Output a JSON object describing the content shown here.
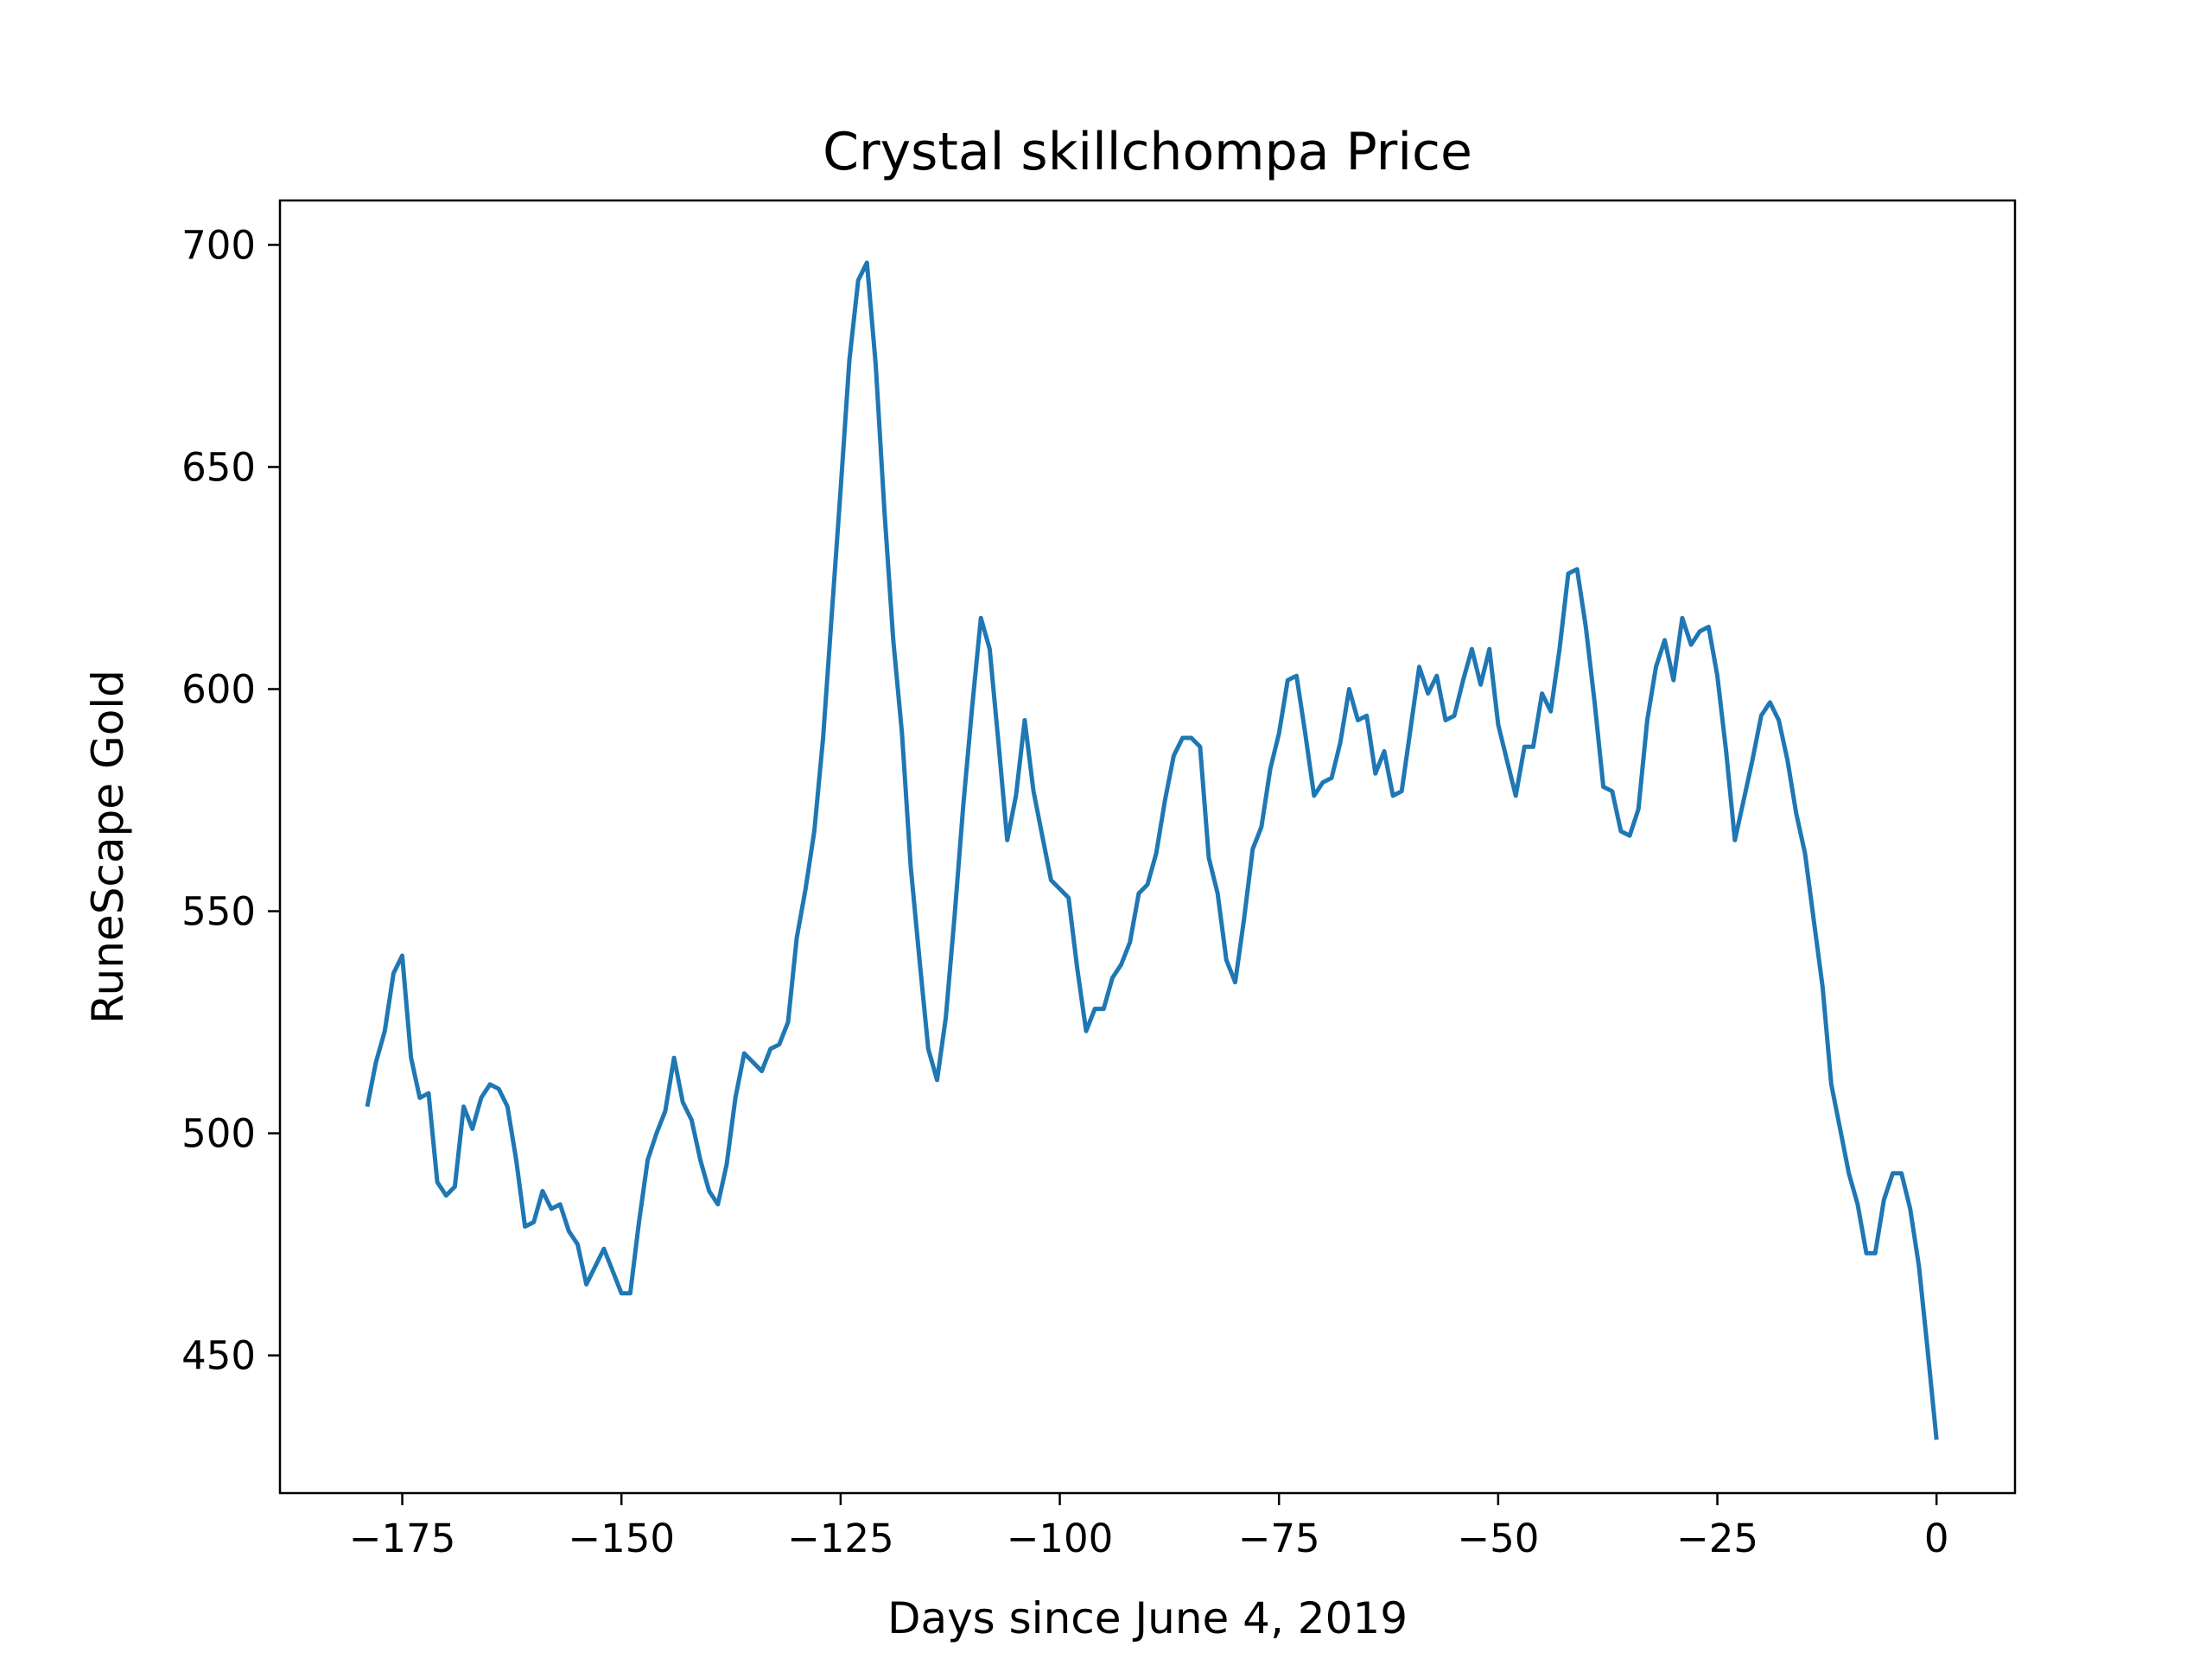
{
  "chart_data": {
    "type": "line",
    "title": "Crystal skillchompa Price",
    "xlabel": "Days since June 4, 2019",
    "ylabel": "RuneScape Gold",
    "xlim": [
      -188.95,
      8.95
    ],
    "ylim": [
      419.0,
      710.0
    ],
    "x_ticks": [
      -175,
      -150,
      -125,
      -100,
      -75,
      -50,
      -25,
      0
    ],
    "x_tick_labels": [
      "−175",
      "−150",
      "−125",
      "−100",
      "−75",
      "−50",
      "−25",
      "0"
    ],
    "y_ticks": [
      450,
      500,
      550,
      600,
      650,
      700
    ],
    "y_tick_labels": [
      "450",
      "500",
      "550",
      "600",
      "650",
      "700"
    ],
    "grid": false,
    "series": [
      {
        "color": "#1f77b4",
        "x": [
          -179,
          -178,
          -177,
          -176,
          -175,
          -174,
          -173,
          -172,
          -171,
          -170,
          -169,
          -168,
          -167,
          -166,
          -165,
          -164,
          -163,
          -162,
          -161,
          -160,
          -159,
          -158,
          -157,
          -156,
          -155,
          -154,
          -153,
          -152,
          -151,
          -150,
          -149,
          -148,
          -147,
          -146,
          -145,
          -144,
          -143,
          -142,
          -141,
          -140,
          -139,
          -138,
          -137,
          -136,
          -135,
          -134,
          -133,
          -132,
          -131,
          -130,
          -129,
          -128,
          -127,
          -126,
          -125,
          -124,
          -123,
          -122,
          -121,
          -120,
          -119,
          -118,
          -117,
          -116,
          -115,
          -114,
          -113,
          -112,
          -111,
          -110,
          -109,
          -108,
          -107,
          -106,
          -105,
          -104,
          -103,
          -102,
          -101,
          -100,
          -99,
          -98,
          -97,
          -96,
          -95,
          -94,
          -93,
          -92,
          -91,
          -90,
          -89,
          -88,
          -87,
          -86,
          -85,
          -84,
          -83,
          -82,
          -81,
          -80,
          -79,
          -78,
          -77,
          -76,
          -75,
          -74,
          -73,
          -72,
          -71,
          -70,
          -69,
          -68,
          -67,
          -66,
          -65,
          -64,
          -63,
          -62,
          -61,
          -60,
          -59,
          -58,
          -57,
          -56,
          -55,
          -54,
          -53,
          -52,
          -51,
          -50,
          -49,
          -48,
          -47,
          -46,
          -45,
          -44,
          -43,
          -42,
          -41,
          -40,
          -39,
          -38,
          -37,
          -36,
          -35,
          -34,
          -33,
          -32,
          -31,
          -30,
          -29,
          -28,
          -27,
          -26,
          -25,
          -24,
          -23,
          -22,
          -21,
          -20,
          -19,
          -18,
          -17,
          -16,
          -15,
          -14,
          -13,
          -12,
          -11,
          -10,
          -9,
          -8,
          -7,
          -6,
          -5,
          -4,
          -3,
          -2,
          -1,
          0
        ],
        "values": [
          506,
          516,
          523,
          536,
          540,
          517,
          508,
          509,
          489,
          486,
          488,
          506,
          501,
          508,
          511,
          510,
          506,
          494,
          479,
          480,
          487,
          483,
          484,
          478,
          475,
          466,
          470,
          474,
          469,
          464,
          464,
          480,
          494,
          500,
          505,
          517,
          507,
          503,
          494,
          487,
          484,
          493,
          508,
          518,
          516,
          514,
          519,
          520,
          525,
          544,
          555,
          568,
          589,
          617,
          645,
          674,
          692,
          696,
          673,
          640,
          611,
          590,
          560,
          539,
          519,
          512,
          526,
          549,
          574,
          596,
          616,
          609,
          588,
          566,
          576,
          593,
          577,
          567,
          557,
          555,
          553,
          537,
          523,
          528,
          528,
          535,
          538,
          543,
          554,
          556,
          563,
          575,
          585,
          589,
          589,
          587,
          562,
          554,
          539,
          534,
          548,
          564,
          569,
          582,
          590,
          602,
          603,
          590,
          576,
          579,
          580,
          588,
          600,
          593,
          594,
          581,
          586,
          576,
          577,
          591,
          605,
          599,
          603,
          593,
          594,
          602,
          609,
          601,
          609,
          592,
          584,
          576,
          587,
          587,
          599,
          595,
          609,
          626,
          627,
          614,
          597,
          578,
          577,
          568,
          567,
          573,
          593,
          605,
          611,
          602,
          616,
          610,
          613,
          614,
          603,
          586,
          566,
          575,
          584,
          594,
          597,
          593,
          584,
          572,
          563,
          548,
          533,
          511,
          501,
          491,
          484,
          473,
          473,
          485,
          491,
          491,
          483,
          470,
          451,
          431
        ]
      }
    ]
  }
}
